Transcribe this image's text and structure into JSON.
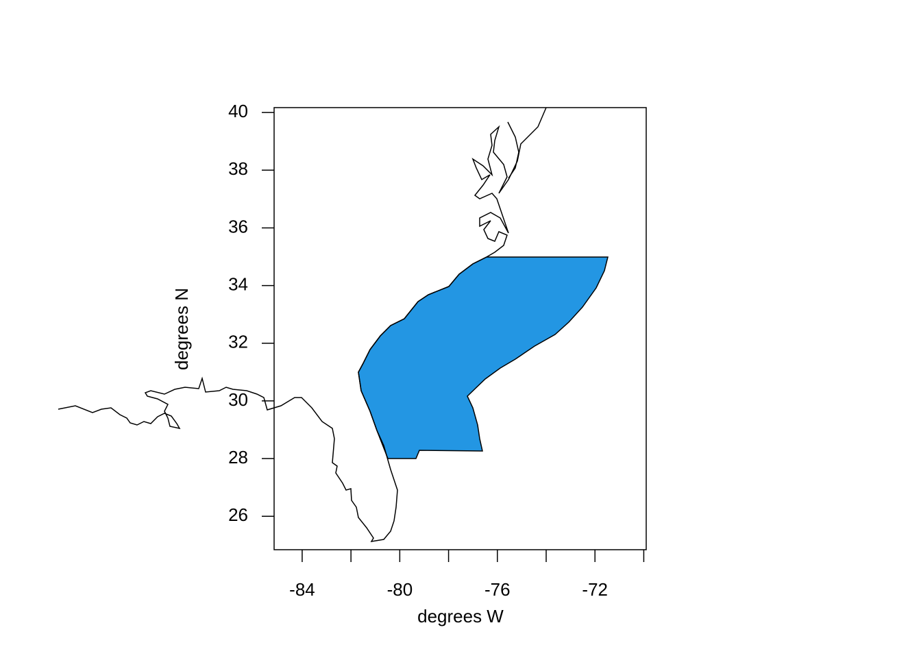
{
  "chart_data": {
    "type": "map",
    "xlabel": "degrees W",
    "ylabel": "degrees N",
    "xlim": [
      -85.15,
      -69.9
    ],
    "ylim": [
      24.84,
      40.17
    ],
    "xticks": [
      -84,
      -80,
      -76,
      -72
    ],
    "xminorticks": [
      -82,
      -78,
      -74,
      -70
    ],
    "yticks": [
      26,
      28,
      30,
      32,
      34,
      36,
      38,
      40
    ],
    "region_color": "#2396e3"
  }
}
